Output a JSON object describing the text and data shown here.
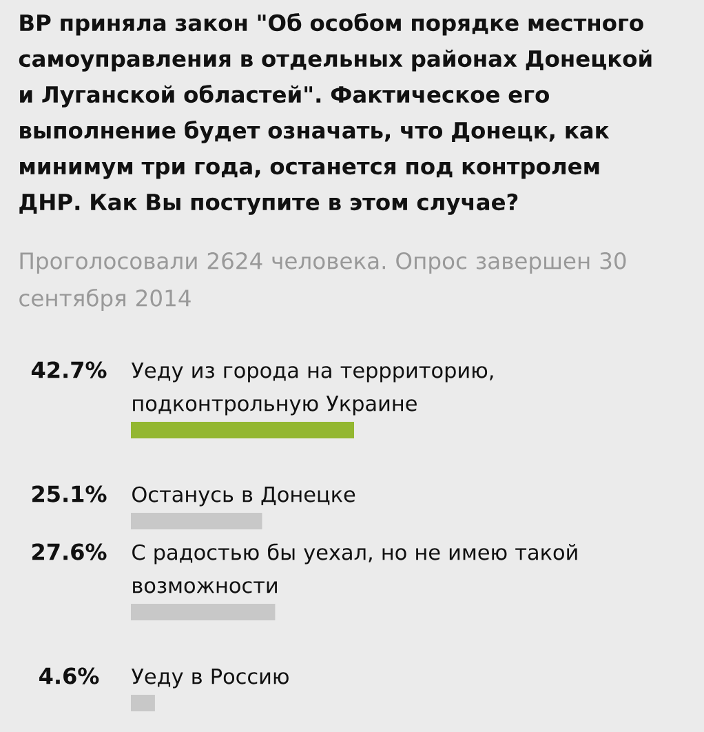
{
  "chart_data": {
    "type": "bar",
    "orientation": "horizontal",
    "title": "ВР приняла закон \"Об особом порядке местного самоуправления в отдельных районах Донецкой и Луганской областей\". Фактическое его выполнение будет означать, что Донецк, как минимум три года, останется под контролем ДНР. Как Вы поступите в этом случае?",
    "subtitle": "Проголосовали 2624 человека. Опрос завершен 30 сентября 2014",
    "categories": [
      "Уеду из города на террриторию, подконтрольную Украине",
      "Останусь в Донецке",
      "С радостью бы уехал, но не имею такой возможности",
      "Уеду в Россию"
    ],
    "values": [
      42.7,
      25.1,
      27.6,
      4.6
    ],
    "colors": [
      "#93b730",
      "#c8c8c8",
      "#c8c8c8",
      "#c8c8c8"
    ],
    "value_labels": [
      "42.7%",
      "25.1%",
      "27.6%",
      "4.6%"
    ]
  }
}
